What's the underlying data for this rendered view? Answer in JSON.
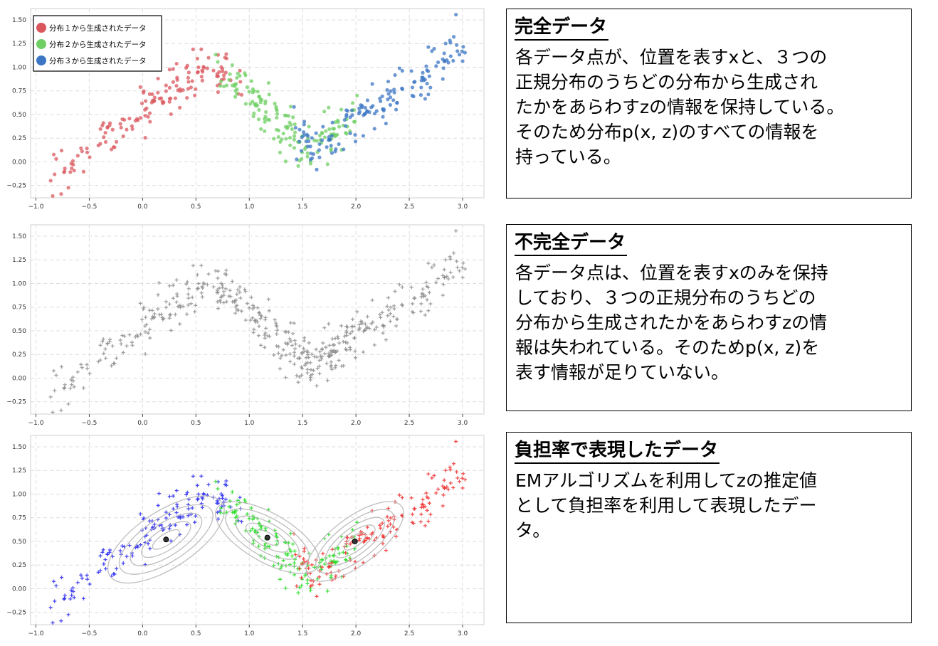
{
  "panels": [
    {
      "title": "完全データ",
      "body": "各データ点が、位置を表すxと、３つの\n正規分布のうちどの分布から生成され\nたかをあらわすzの情報を保持している。\nそのため分布p(x, z)のすべての情報を\n持っている。"
    },
    {
      "title": "不完全データ",
      "body": "各データ点は、位置を表すxのみを保持\nしており、３つの正規分布のうちどの\n分布から生成されたかをあらわすzの情\n報は失われている。そのためp(x, z)を\n表す情報が足りていない。"
    },
    {
      "title": "負担率で表現したデータ",
      "body": "EMアルゴリズムを利用してzの推定値\nとして負担率を利用して表現したデー\nタ。"
    }
  ],
  "colors": {
    "series1": "#d9575d",
    "series2": "#6fcf63",
    "series3": "#3b75c4",
    "gray": "#8a8a8a",
    "blue_resp": "#2b2bf0",
    "green_resp": "#22dd22",
    "red_resp": "#f03030"
  },
  "chart_data": [
    {
      "type": "scatter",
      "title": "",
      "xlim": [
        -1.05,
        3.2
      ],
      "ylim": [
        -0.38,
        1.62
      ],
      "x_ticks": [
        -1.0,
        -0.5,
        0.0,
        0.5,
        1.0,
        1.5,
        2.0,
        2.5,
        3.0
      ],
      "y_ticks": [
        -0.25,
        0.0,
        0.25,
        0.5,
        0.75,
        1.0,
        1.25,
        1.5
      ],
      "grid": true,
      "legend_position": "top-left",
      "series": [
        {
          "name": "分布１から生成されたデータ",
          "color": "#d9575d",
          "center": [
            0.25,
            0.5
          ],
          "approx_count": 150
        },
        {
          "name": "分布２から生成されたデータ",
          "color": "#6fcf63",
          "center": [
            1.2,
            0.5
          ],
          "approx_count": 150
        },
        {
          "name": "分布３から生成されたデータ",
          "color": "#3b75c4",
          "center": [
            2.0,
            0.5
          ],
          "approx_count": 150
        }
      ]
    },
    {
      "type": "scatter",
      "title": "",
      "xlim": [
        -1.05,
        3.2
      ],
      "ylim": [
        -0.38,
        1.62
      ],
      "x_ticks": [
        -1.0,
        -0.5,
        0.0,
        0.5,
        1.0,
        1.5,
        2.0,
        2.5,
        3.0
      ],
      "y_ticks": [
        -0.25,
        0.0,
        0.25,
        0.5,
        0.75,
        1.0,
        1.25,
        1.5
      ],
      "grid": true,
      "marker": "plus",
      "series": [
        {
          "color": "#8a8a8a",
          "approx_count": 450
        }
      ]
    },
    {
      "type": "scatter",
      "title": "",
      "xlim": [
        -1.05,
        3.2
      ],
      "ylim": [
        -0.38,
        1.62
      ],
      "x_ticks": [
        -1.0,
        -0.5,
        0.0,
        0.5,
        1.0,
        1.5,
        2.0,
        2.5,
        3.0
      ],
      "y_ticks": [
        -0.25,
        0.0,
        0.25,
        0.5,
        0.75,
        1.0,
        1.25,
        1.5
      ],
      "grid": true,
      "marker": "plus",
      "cluster_centers": [
        [
          0.22,
          0.52
        ],
        [
          1.17,
          0.54
        ],
        [
          1.99,
          0.5
        ]
      ],
      "contours": true,
      "series": [
        {
          "color": "#2b2bf0",
          "center": [
            0.22,
            0.52
          ],
          "approx_count": 150
        },
        {
          "color": "#22dd22",
          "center": [
            1.17,
            0.54
          ],
          "approx_count": 150
        },
        {
          "color": "#f03030",
          "center": [
            1.99,
            0.5
          ],
          "approx_count": 150
        }
      ]
    }
  ]
}
